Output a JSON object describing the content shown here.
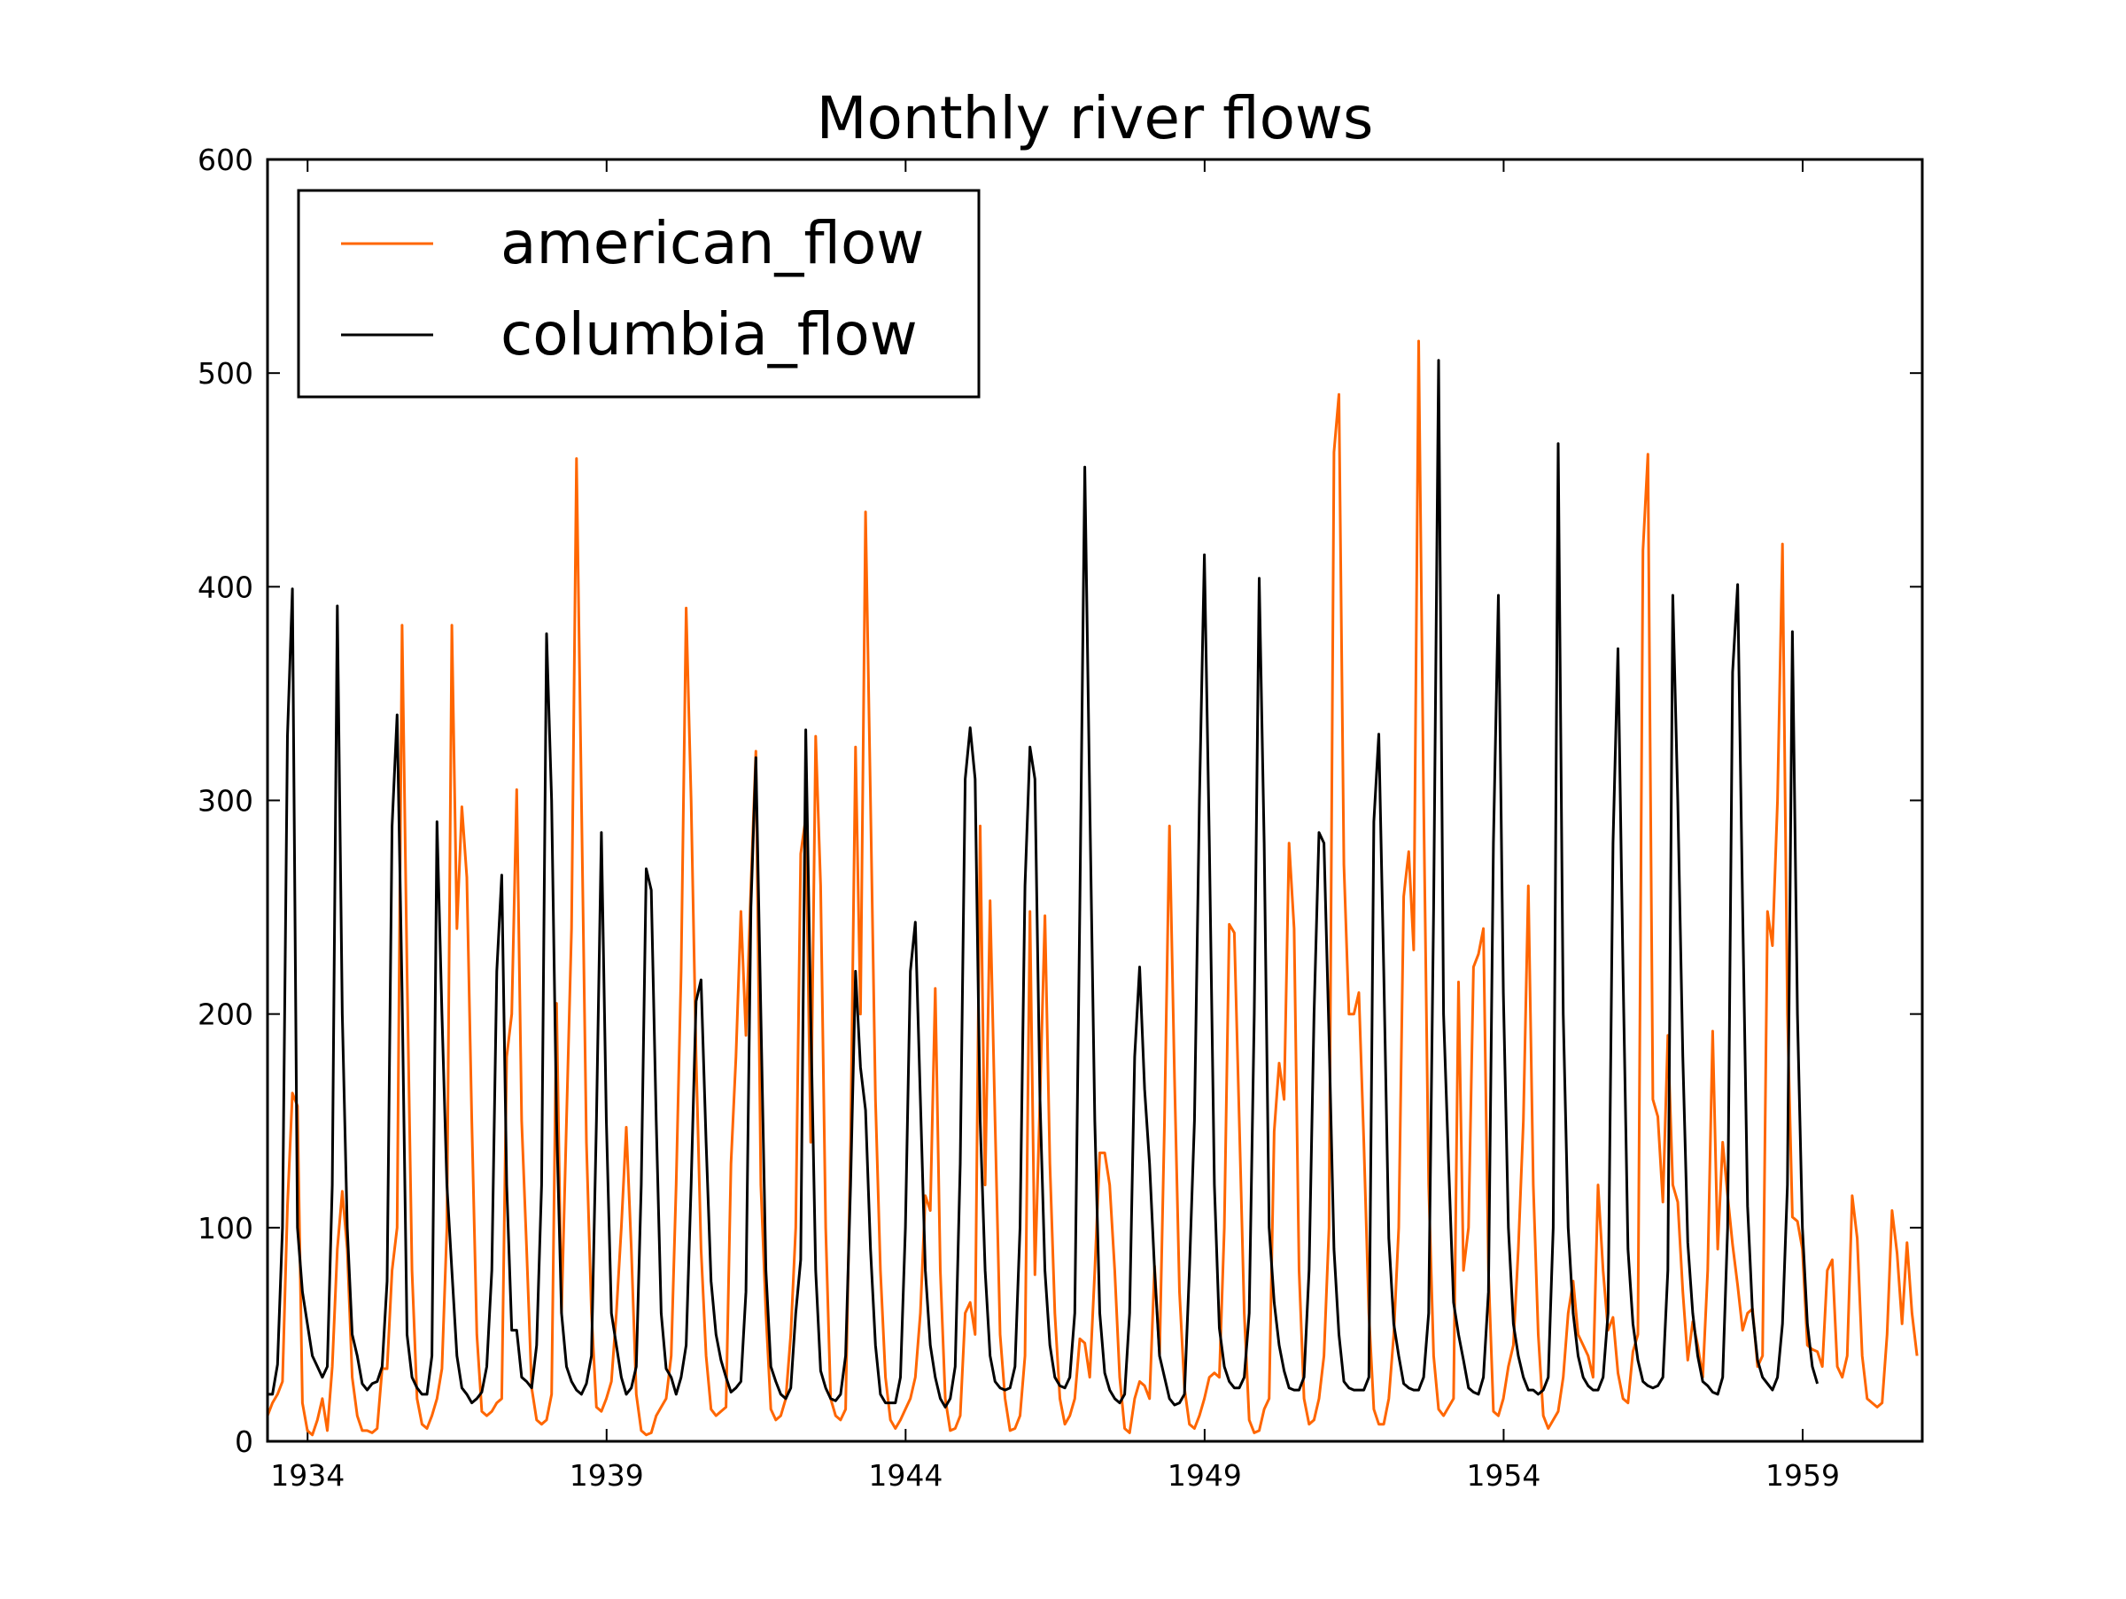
{
  "chart_data": {
    "type": "line",
    "title": "Monthly river flows",
    "xlabel": "",
    "ylabel": "",
    "xlim": [
      1933.33,
      1961.0
    ],
    "ylim": [
      0,
      600
    ],
    "x_ticks": [
      1934,
      1939,
      1944,
      1949,
      1954,
      1959
    ],
    "x_tick_labels": [
      "1934",
      "1939",
      "1944",
      "1949",
      "1954",
      "1959"
    ],
    "y_ticks": [
      0,
      100,
      200,
      300,
      400,
      500,
      600
    ],
    "y_tick_labels": [
      "0",
      "100",
      "200",
      "300",
      "400",
      "500",
      "600"
    ],
    "grid": false,
    "legend": {
      "position": "top-left"
    },
    "x_start": 1933.33,
    "x_step": 0.08333,
    "series": [
      {
        "name": "american_flow",
        "color": "#ff6600",
        "values": [
          12,
          18,
          22,
          28,
          110,
          163,
          157,
          18,
          5,
          3,
          10,
          20,
          5,
          35,
          90,
          117,
          90,
          30,
          12,
          5,
          5,
          4,
          6,
          34,
          34,
          80,
          100,
          382,
          220,
          80,
          20,
          8,
          6,
          12,
          20,
          34,
          100,
          382,
          240,
          297,
          264,
          150,
          50,
          14,
          12,
          14,
          18,
          20,
          180,
          200,
          305,
          150,
          90,
          25,
          10,
          8,
          10,
          22,
          205,
          60,
          150,
          240,
          460,
          300,
          140,
          60,
          16,
          14,
          20,
          28,
          60,
          100,
          147,
          90,
          22,
          5,
          3,
          4,
          12,
          16,
          20,
          40,
          120,
          220,
          390,
          300,
          180,
          90,
          40,
          15,
          12,
          14,
          16,
          130,
          180,
          248,
          190,
          260,
          323,
          120,
          60,
          15,
          10,
          12,
          20,
          50,
          100,
          275,
          292,
          140,
          330,
          260,
          100,
          20,
          12,
          10,
          15,
          140,
          325,
          200,
          435,
          300,
          160,
          80,
          30,
          10,
          6,
          10,
          15,
          20,
          30,
          60,
          115,
          108,
          212,
          80,
          20,
          5,
          6,
          12,
          60,
          65,
          50,
          288,
          120,
          253,
          150,
          50,
          20,
          5,
          6,
          12,
          40,
          248,
          78,
          160,
          246,
          130,
          60,
          20,
          8,
          12,
          20,
          48,
          46,
          30,
          80,
          135,
          135,
          120,
          80,
          30,
          6,
          4,
          20,
          28,
          26,
          20,
          82,
          40,
          150,
          288,
          170,
          70,
          25,
          8,
          6,
          12,
          20,
          30,
          32,
          30,
          100,
          242,
          238,
          150,
          60,
          10,
          4,
          5,
          15,
          20,
          145,
          177,
          160,
          280,
          240,
          80,
          20,
          8,
          10,
          20,
          40,
          100,
          463,
          490,
          270,
          200,
          200,
          210,
          140,
          60,
          15,
          8,
          8,
          20,
          50,
          100,
          255,
          276,
          230,
          515,
          300,
          120,
          40,
          15,
          12,
          16,
          20,
          215,
          80,
          100,
          222,
          228,
          240,
          80,
          14,
          12,
          20,
          35,
          45,
          90,
          150,
          260,
          120,
          50,
          12,
          6,
          10,
          14,
          30,
          60,
          75,
          50,
          45,
          40,
          30,
          120,
          80,
          52,
          58,
          32,
          20,
          18,
          42,
          50,
          417,
          462,
          160,
          152,
          112,
          190,
          120,
          112,
          70,
          38,
          56,
          45,
          30,
          80,
          192,
          90,
          140,
          115,
          92,
          73,
          52,
          60,
          62,
          35,
          40,
          248,
          232,
          300,
          420,
          200,
          105,
          103,
          90,
          45,
          43,
          42,
          35,
          80,
          85,
          35,
          30,
          40,
          115,
          95,
          40,
          20,
          18,
          16,
          18,
          50,
          108,
          88,
          55,
          93,
          60,
          40
        ]
      },
      {
        "name": "columbia_flow",
        "color": "#000000",
        "values": [
          22,
          22,
          36,
          100,
          330,
          399,
          100,
          70,
          55,
          40,
          35,
          30,
          35,
          120,
          391,
          200,
          100,
          50,
          40,
          27,
          24,
          27,
          28,
          35,
          75,
          288,
          340,
          210,
          50,
          30,
          25,
          22,
          22,
          40,
          290,
          200,
          120,
          80,
          40,
          25,
          22,
          18,
          20,
          23,
          35,
          80,
          220,
          265,
          120,
          52,
          52,
          30,
          28,
          25,
          45,
          120,
          378,
          300,
          150,
          60,
          35,
          28,
          24,
          22,
          27,
          40,
          150,
          285,
          150,
          60,
          45,
          30,
          22,
          25,
          35,
          120,
          268,
          258,
          150,
          60,
          34,
          30,
          22,
          30,
          45,
          120,
          206,
          216,
          140,
          75,
          50,
          38,
          30,
          23,
          25,
          28,
          70,
          250,
          320,
          200,
          80,
          35,
          28,
          22,
          20,
          25,
          60,
          85,
          333,
          200,
          80,
          33,
          25,
          20,
          19,
          22,
          40,
          120,
          220,
          175,
          155,
          90,
          45,
          22,
          18,
          18,
          18,
          30,
          100,
          220,
          243,
          160,
          80,
          45,
          30,
          20,
          16,
          20,
          35,
          130,
          310,
          334,
          310,
          150,
          80,
          40,
          28,
          25,
          24,
          25,
          35,
          100,
          260,
          325,
          310,
          160,
          80,
          45,
          30,
          26,
          25,
          30,
          60,
          250,
          456,
          300,
          150,
          60,
          32,
          24,
          20,
          18,
          22,
          60,
          180,
          222,
          165,
          130,
          80,
          40,
          30,
          20,
          17,
          18,
          22,
          80,
          150,
          300,
          415,
          280,
          120,
          53,
          35,
          28,
          25,
          25,
          30,
          60,
          200,
          404,
          280,
          100,
          65,
          45,
          33,
          25,
          24,
          24,
          30,
          80,
          200,
          285,
          280,
          190,
          90,
          50,
          28,
          25,
          24,
          24,
          24,
          30,
          290,
          331,
          220,
          95,
          55,
          40,
          27,
          25,
          24,
          24,
          30,
          60,
          250,
          506,
          200,
          130,
          65,
          50,
          38,
          25,
          23,
          22,
          30,
          70,
          280,
          396,
          210,
          100,
          55,
          40,
          30,
          24,
          24,
          22,
          24,
          30,
          100,
          467,
          200,
          100,
          60,
          40,
          30,
          26,
          24,
          24,
          30,
          60,
          280,
          371,
          220,
          90,
          55,
          38,
          28,
          26,
          25,
          26,
          30,
          80,
          396,
          300,
          180,
          93,
          60,
          40,
          28,
          26,
          23,
          22,
          30,
          100,
          360,
          401,
          250,
          110,
          60,
          38,
          30,
          27,
          24,
          30,
          55,
          120,
          379,
          200,
          100,
          55,
          35,
          27
        ]
      }
    ]
  }
}
